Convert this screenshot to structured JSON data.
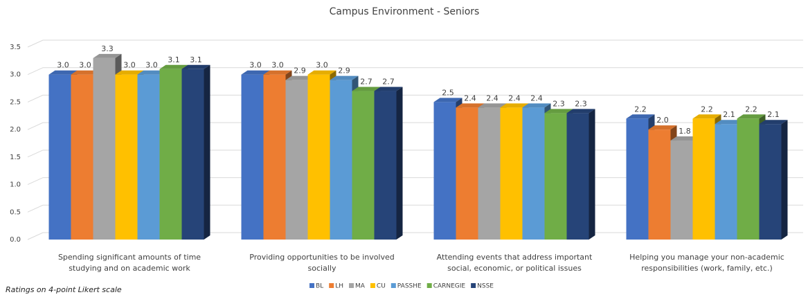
{
  "chart_data": {
    "type": "bar3d",
    "title": "Campus Environment - Seniors",
    "footnote": "Ratings on 4-point Likert scale",
    "categories": [
      [
        "Spending significant amounts of time",
        "studying and on academic work"
      ],
      [
        "Providing opportunities to be involved",
        "socially"
      ],
      [
        "Attending events that address important",
        "social, economic, or political issues"
      ],
      [
        "Helping you manage your non-academic",
        "responsibilities (work, family, etc.)"
      ]
    ],
    "series": [
      {
        "name": "BL",
        "color": "#4472c4",
        "values": [
          3.0,
          3.0,
          2.5,
          2.2
        ],
        "value_labels": [
          "3.0",
          "3.0",
          "2.5",
          "2.2"
        ]
      },
      {
        "name": "LH",
        "color": "#ed7d31",
        "values": [
          3.0,
          3.0,
          2.4,
          2.0
        ],
        "value_labels": [
          "3.0",
          "3.0",
          "2.4",
          "2.0"
        ]
      },
      {
        "name": "MA",
        "color": "#a5a5a5",
        "values": [
          3.3,
          2.9,
          2.4,
          1.8
        ],
        "value_labels": [
          "3.3",
          "2.9",
          "2.4",
          "1.8"
        ]
      },
      {
        "name": "CU",
        "color": "#ffc000",
        "values": [
          3.0,
          3.0,
          2.4,
          2.2
        ],
        "value_labels": [
          "3.0",
          "3.0",
          "2.4",
          "2.2"
        ]
      },
      {
        "name": "PASSHE",
        "color": "#5b9bd5",
        "values": [
          3.0,
          2.9,
          2.4,
          2.1
        ],
        "value_labels": [
          "3.0",
          "2.9",
          "2.4",
          "2.1"
        ]
      },
      {
        "name": "CARNEGIE",
        "color": "#70ad47",
        "values": [
          3.1,
          2.7,
          2.3,
          2.2
        ],
        "value_labels": [
          "3.1",
          "2.7",
          "2.3",
          "2.2"
        ]
      },
      {
        "name": "NSSE",
        "color": "#264478",
        "values": [
          3.1,
          2.7,
          2.3,
          2.1
        ],
        "value_labels": [
          "3.1",
          "2.7",
          "2.3",
          "2.1"
        ]
      }
    ],
    "ylim": [
      0,
      3.5
    ],
    "yticks": [
      {
        "value": 0,
        "label": "0.0"
      },
      {
        "value": 0.5,
        "label": "0.5"
      },
      {
        "value": 1,
        "label": "1.0"
      },
      {
        "value": 1.5,
        "label": "1.5"
      },
      {
        "value": 2,
        "label": "2.0"
      },
      {
        "value": 2.5,
        "label": "2.5"
      },
      {
        "value": 3,
        "label": "3.0"
      },
      {
        "value": 3.5,
        "label": "3.5"
      }
    ],
    "grid": true,
    "legend": "bottom"
  }
}
